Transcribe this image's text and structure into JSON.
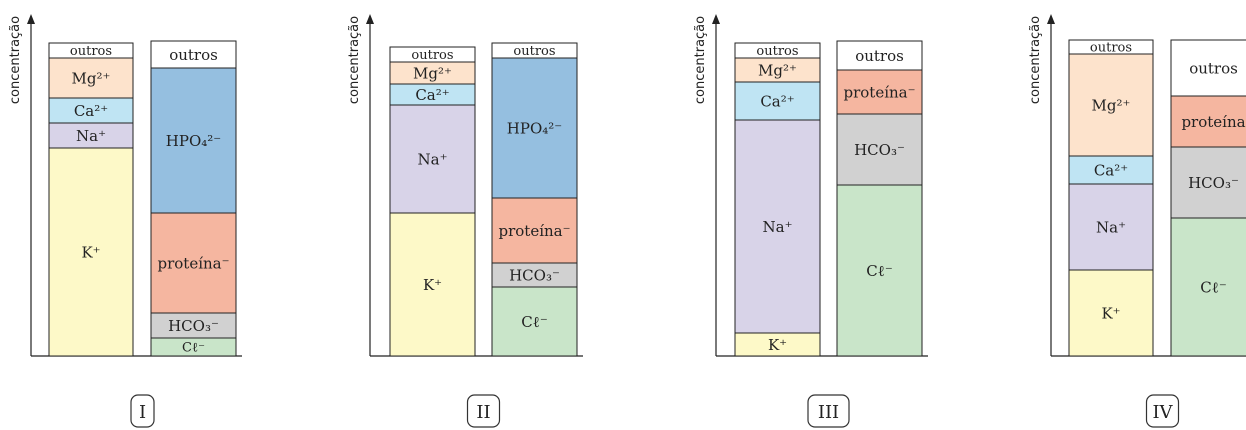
{
  "axis_label": "concentração",
  "colors": {
    "outros": "#ffffff",
    "Mg": "#fde3cc",
    "Ca": "#bfe4f3",
    "Na": "#d8d3e8",
    "K": "#fdf9c8",
    "HPO4": "#95bfe0",
    "proteina": "#f5b6a0",
    "HCO3": "#d1d1d1",
    "Cl": "#c9e5c9"
  },
  "chart_data": [
    {
      "type": "bar",
      "id": "I",
      "panel_label": "I",
      "stacked": true,
      "columns": [
        {
          "name": "cations",
          "segments": [
            {
              "key": "K",
              "label": "K⁺",
              "value": 208
            },
            {
              "key": "Na",
              "label": "Na⁺",
              "value": 25
            },
            {
              "key": "Ca",
              "label": "Ca²⁺",
              "value": 25
            },
            {
              "key": "Mg",
              "label": "Mg²⁺",
              "value": 40
            },
            {
              "key": "outros",
              "label": "outros",
              "value": 15
            }
          ]
        },
        {
          "name": "anions",
          "segments": [
            {
              "key": "Cl",
              "label": "Cℓ⁻",
              "value": 18
            },
            {
              "key": "HCO3",
              "label": "HCO₃⁻",
              "value": 25
            },
            {
              "key": "proteina",
              "label": "proteína⁻",
              "value": 100
            },
            {
              "key": "HPO4",
              "label": "HPO₄²⁻",
              "value": 145
            },
            {
              "key": "outros",
              "label": "outros",
              "value": 27
            }
          ]
        }
      ]
    },
    {
      "type": "bar",
      "id": "II",
      "panel_label": "II",
      "stacked": true,
      "columns": [
        {
          "name": "cations",
          "segments": [
            {
              "key": "K",
              "label": "K⁺",
              "value": 143
            },
            {
              "key": "Na",
              "label": "Na⁺",
              "value": 108
            },
            {
              "key": "Ca",
              "label": "Ca²⁺",
              "value": 21
            },
            {
              "key": "Mg",
              "label": "Mg²⁺",
              "value": 22
            },
            {
              "key": "outros",
              "label": "outros",
              "value": 15
            }
          ]
        },
        {
          "name": "anions",
          "segments": [
            {
              "key": "Cl",
              "label": "Cℓ⁻",
              "value": 69
            },
            {
              "key": "HCO3",
              "label": "HCO₃⁻",
              "value": 24
            },
            {
              "key": "proteina",
              "label": "proteína⁻",
              "value": 65
            },
            {
              "key": "HPO4",
              "label": "HPO₄²⁻",
              "value": 140
            },
            {
              "key": "outros",
              "label": "outros",
              "value": 15
            }
          ]
        }
      ]
    },
    {
      "type": "bar",
      "id": "III",
      "panel_label": "III",
      "stacked": true,
      "columns": [
        {
          "name": "cations",
          "segments": [
            {
              "key": "K",
              "label": "K⁺",
              "value": 23
            },
            {
              "key": "Na",
              "label": "Na⁺",
              "value": 213
            },
            {
              "key": "Ca",
              "label": "Ca²⁺",
              "value": 38
            },
            {
              "key": "Mg",
              "label": "Mg²⁺",
              "value": 24
            },
            {
              "key": "outros",
              "label": "outros",
              "value": 15
            }
          ]
        },
        {
          "name": "anions",
          "segments": [
            {
              "key": "Cl",
              "label": "Cℓ⁻",
              "value": 171
            },
            {
              "key": "HCO3",
              "label": "HCO₃⁻",
              "value": 71
            },
            {
              "key": "proteina",
              "label": "proteína⁻",
              "value": 44
            },
            {
              "key": "outros",
              "label": "outros",
              "value": 29
            }
          ]
        }
      ]
    },
    {
      "type": "bar",
      "id": "IV",
      "panel_label": "IV",
      "stacked": true,
      "columns": [
        {
          "name": "cations",
          "segments": [
            {
              "key": "K",
              "label": "K⁺",
              "value": 86
            },
            {
              "key": "Na",
              "label": "Na⁺",
              "value": 86
            },
            {
              "key": "Ca",
              "label": "Ca²⁺",
              "value": 28
            },
            {
              "key": "Mg",
              "label": "Mg²⁺",
              "value": 102
            },
            {
              "key": "outros",
              "label": "outros",
              "value": 14
            }
          ]
        },
        {
          "name": "anions",
          "segments": [
            {
              "key": "Cl",
              "label": "Cℓ⁻",
              "value": 138
            },
            {
              "key": "HCO3",
              "label": "HCO₃⁻",
              "value": 71
            },
            {
              "key": "proteina",
              "label": "proteína",
              "value": 51
            },
            {
              "key": "outros",
              "label": "outros",
              "value": 56
            }
          ]
        }
      ]
    }
  ]
}
